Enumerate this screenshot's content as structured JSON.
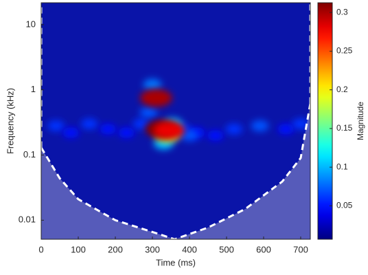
{
  "chart_data": {
    "type": "scalogram",
    "x_label": "Time (ms)",
    "y_label": "Frequency (kHz)",
    "colorbar_label": "Magnitude",
    "xlim": [
      0,
      726
    ],
    "xticks": [
      0,
      100,
      200,
      300,
      400,
      500,
      600,
      700
    ],
    "ylim": [
      0.0051,
      21.7
    ],
    "y_scale": "log",
    "yticks": [
      0.01,
      0.1,
      1,
      10
    ],
    "clim": [
      0.0068,
      0.3126
    ],
    "cticks": [
      0.05,
      0.1,
      0.15,
      0.2,
      0.25,
      0.3
    ],
    "hotspots": {
      "x": [
        40,
        80,
        130,
        180,
        230,
        270,
        380,
        420,
        470,
        520,
        590,
        660,
        700,
        290,
        355,
        400,
        300,
        330,
        340,
        310,
        325,
        345
      ],
      "y": [
        0.28,
        0.22,
        0.3,
        0.25,
        0.22,
        0.3,
        0.25,
        0.22,
        0.2,
        0.25,
        0.28,
        0.25,
        0.3,
        0.45,
        0.3,
        0.2,
        1.2,
        0.15,
        0.2,
        0.75,
        0.25,
        0.24
      ],
      "values": [
        0.06,
        0.05,
        0.06,
        0.05,
        0.05,
        0.06,
        0.06,
        0.05,
        0.05,
        0.06,
        0.07,
        0.05,
        0.06,
        0.07,
        0.1,
        0.07,
        0.08,
        0.1,
        0.18,
        0.3,
        0.32,
        0.28
      ]
    },
    "cone_of_influence": {
      "x": [
        0,
        50,
        100,
        200,
        300,
        360,
        450,
        550,
        650,
        700,
        726
      ],
      "y": [
        0.13,
        0.044,
        0.021,
        0.01,
        0.0066,
        0.0051,
        0.0077,
        0.0148,
        0.039,
        0.09,
        0.62
      ]
    }
  }
}
